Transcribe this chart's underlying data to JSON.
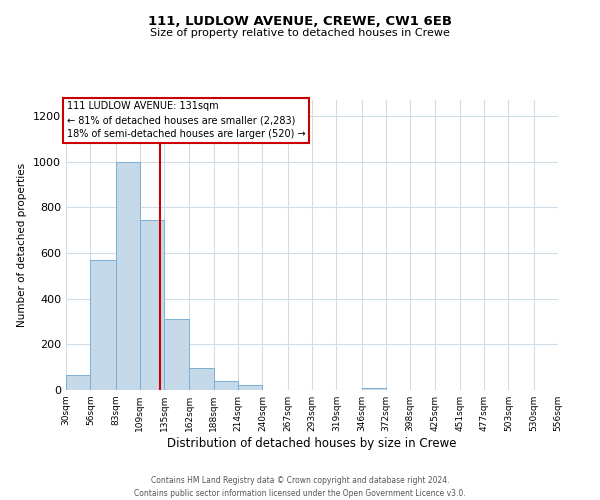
{
  "title": "111, LUDLOW AVENUE, CREWE, CW1 6EB",
  "subtitle": "Size of property relative to detached houses in Crewe",
  "xlabel": "Distribution of detached houses by size in Crewe",
  "ylabel": "Number of detached properties",
  "footer_line1": "Contains HM Land Registry data © Crown copyright and database right 2024.",
  "footer_line2": "Contains public sector information licensed under the Open Government Licence v3.0.",
  "annotation_line1": "111 LUDLOW AVENUE: 131sqm",
  "annotation_line2": "← 81% of detached houses are smaller (2,283)",
  "annotation_line3": "18% of semi-detached houses are larger (520) →",
  "property_size": 131,
  "bar_color": "#c5d9e8",
  "bar_edge_color": "#7bafd4",
  "vline_color": "#cc0000",
  "annotation_box_color": "#cc0000",
  "background_color": "#ffffff",
  "grid_color": "#d0dce8",
  "bin_edges": [
    30,
    56,
    83,
    109,
    135,
    162,
    188,
    214,
    240,
    267,
    293,
    319,
    346,
    372,
    398,
    425,
    451,
    477,
    503,
    530,
    556
  ],
  "bin_labels": [
    "30sqm",
    "56sqm",
    "83sqm",
    "109sqm",
    "135sqm",
    "162sqm",
    "188sqm",
    "214sqm",
    "240sqm",
    "267sqm",
    "293sqm",
    "319sqm",
    "346sqm",
    "372sqm",
    "398sqm",
    "425sqm",
    "451sqm",
    "477sqm",
    "503sqm",
    "530sqm",
    "556sqm"
  ],
  "counts": [
    65,
    570,
    1000,
    745,
    310,
    95,
    40,
    20,
    0,
    0,
    0,
    0,
    10,
    0,
    0,
    0,
    0,
    0,
    0,
    0
  ],
  "ylim": [
    0,
    1270
  ],
  "yticks": [
    0,
    200,
    400,
    600,
    800,
    1000,
    1200
  ]
}
